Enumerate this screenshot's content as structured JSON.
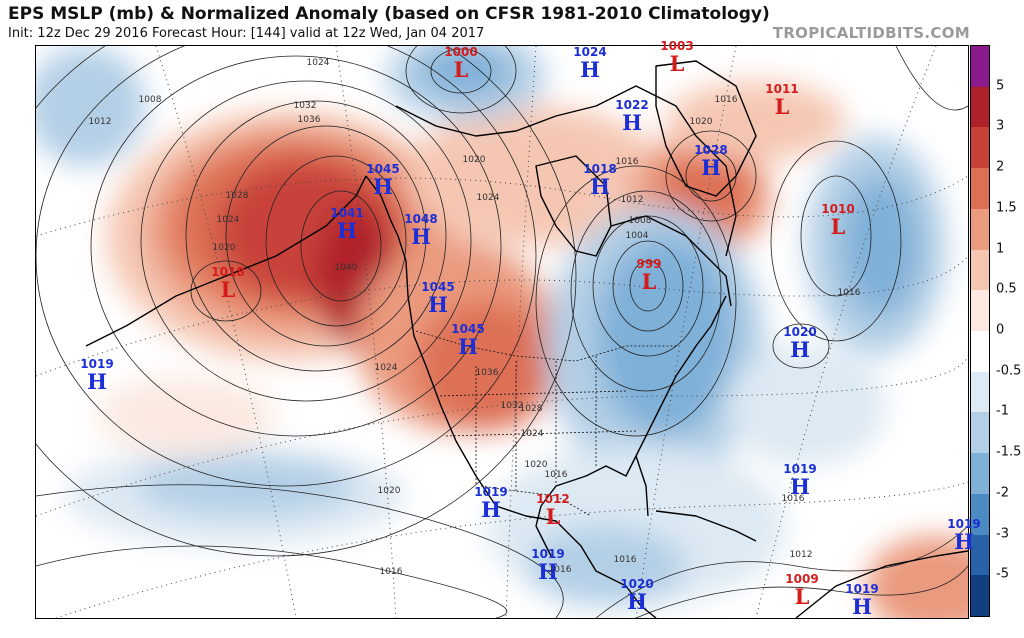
{
  "header": {
    "title": "EPS MSLP (mb) & Normalized Anomaly (based on CFSR 1981-2010 Climatology)",
    "subtitle": "Init: 12z Dec 29 2016   Forecast Hour: [144]   valid at 12z Wed, Jan 04 2017",
    "brand": "TROPICALTIDBITS.COM"
  },
  "colorbar": {
    "labels": [
      "5",
      "3",
      "2",
      "1.5",
      "1",
      "0.5",
      "0",
      "-0.5",
      "-1",
      "-1.5",
      "-2",
      "-3",
      "-5"
    ],
    "colors": [
      "#8b1a8b",
      "#b0202a",
      "#c8423a",
      "#dd6f55",
      "#ea9a7e",
      "#f5c7b3",
      "#fbe9e1",
      "#ffffff",
      "#dde9f3",
      "#b3cfe6",
      "#7fb0d8",
      "#4a8bc4",
      "#2862a8",
      "#123f80"
    ]
  },
  "pressure_centers": [
    {
      "kind": "L",
      "value": "1000"
    },
    {
      "kind": "H",
      "value": "1024"
    },
    {
      "kind": "L",
      "value": "1003"
    },
    {
      "kind": "L",
      "value": "1011"
    },
    {
      "kind": "H",
      "value": "1022"
    },
    {
      "kind": "H",
      "value": "1028"
    },
    {
      "kind": "H",
      "value": "1045"
    },
    {
      "kind": "H",
      "value": "1041"
    },
    {
      "kind": "H",
      "value": "1048"
    },
    {
      "kind": "H",
      "value": "1018"
    },
    {
      "kind": "L",
      "value": "1010"
    },
    {
      "kind": "L",
      "value": "1018"
    },
    {
      "kind": "L",
      "value": "999"
    },
    {
      "kind": "H",
      "value": "1045"
    },
    {
      "kind": "H",
      "value": "1045"
    },
    {
      "kind": "H",
      "value": "1020"
    },
    {
      "kind": "H",
      "value": "1019"
    },
    {
      "kind": "H",
      "value": "1019"
    },
    {
      "kind": "L",
      "value": "1012"
    },
    {
      "kind": "H",
      "value": "1019"
    },
    {
      "kind": "H",
      "value": "1019"
    },
    {
      "kind": "H",
      "value": "1020"
    },
    {
      "kind": "L",
      "value": "1009"
    },
    {
      "kind": "H",
      "value": "1019"
    },
    {
      "kind": "H",
      "value": "1019"
    }
  ],
  "isobar_labels": [
    "1024",
    "1008",
    "1012",
    "1032",
    "1036",
    "1028",
    "1024",
    "1020",
    "1040",
    "1020",
    "1024",
    "1016",
    "1020",
    "1016",
    "1012",
    "1008",
    "1004",
    "1016",
    "1020",
    "1024",
    "1028",
    "1032",
    "1036",
    "1024",
    "1020",
    "1016",
    "1016",
    "1016",
    "1012",
    "1016",
    "1016"
  ]
}
